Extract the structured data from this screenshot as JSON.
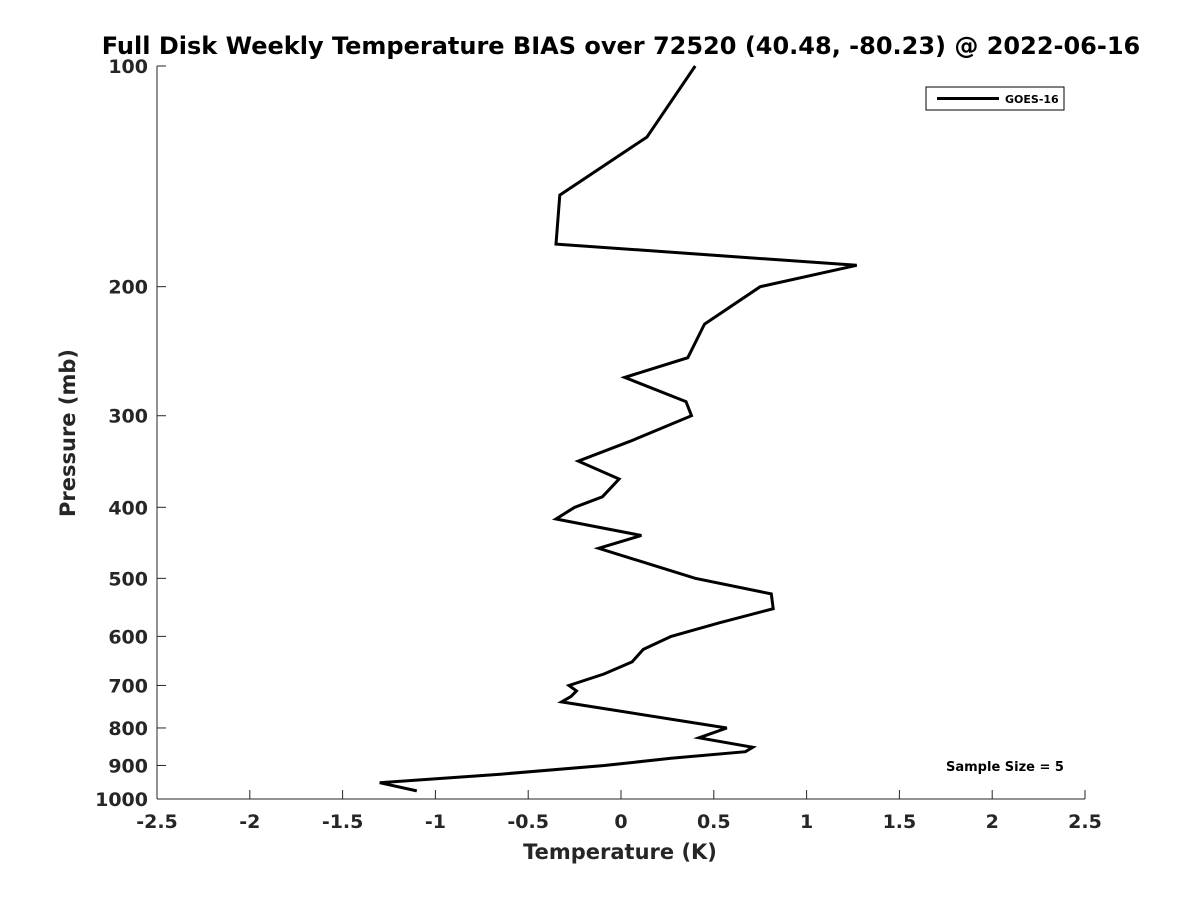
{
  "chart_data": {
    "type": "line",
    "title": "Full Disk Weekly Temperature BIAS over 72520 (40.48, -80.23) @ 2022-06-16",
    "xlabel": "Temperature (K)",
    "ylabel": "Pressure (mb)",
    "xlim": [
      -2.5,
      2.5
    ],
    "ylim": [
      100,
      1000
    ],
    "y_scale": "log",
    "y_reversed": true,
    "x_ticks": [
      -2.5,
      -2,
      -1.5,
      -1,
      -0.5,
      0,
      0.5,
      1,
      1.5,
      2,
      2.5
    ],
    "x_tick_labels": [
      "-2.5",
      "-2",
      "-1.5",
      "-1",
      "-0.5",
      "0",
      "0.5",
      "1",
      "1.5",
      "2",
      "2.5"
    ],
    "y_ticks": [
      100,
      200,
      300,
      400,
      500,
      600,
      700,
      800,
      900,
      1000
    ],
    "y_tick_labels": [
      "100",
      "200",
      "300",
      "400",
      "500",
      "600",
      "700",
      "800",
      "900",
      "1000"
    ],
    "grid": false,
    "legend_position": "top-right",
    "series": [
      {
        "name": "GOES-16",
        "color": "#000000",
        "points": [
          [
            0.4,
            100
          ],
          [
            0.14,
            125
          ],
          [
            -0.33,
            150
          ],
          [
            -0.35,
            175
          ],
          [
            1.27,
            187
          ],
          [
            0.75,
            200
          ],
          [
            0.45,
            225
          ],
          [
            0.36,
            250
          ],
          [
            0.02,
            266
          ],
          [
            0.35,
            287
          ],
          [
            0.38,
            300
          ],
          [
            0.05,
            325
          ],
          [
            -0.23,
            346
          ],
          [
            -0.01,
            366
          ],
          [
            -0.1,
            387
          ],
          [
            -0.25,
            400
          ],
          [
            -0.35,
            415
          ],
          [
            0.11,
            437
          ],
          [
            -0.12,
            455
          ],
          [
            0.4,
            500
          ],
          [
            0.81,
            525
          ],
          [
            0.82,
            550
          ],
          [
            0.53,
            575
          ],
          [
            0.27,
            600
          ],
          [
            0.12,
            625
          ],
          [
            0.06,
            650
          ],
          [
            -0.09,
            675
          ],
          [
            -0.28,
            700
          ],
          [
            -0.24,
            712
          ],
          [
            -0.27,
            725
          ],
          [
            -0.32,
            737
          ],
          [
            0.57,
            800
          ],
          [
            0.42,
            825
          ],
          [
            0.71,
            850
          ],
          [
            0.67,
            862
          ],
          [
            0.27,
            880
          ],
          [
            -0.09,
            900
          ],
          [
            -0.65,
            925
          ],
          [
            -1.3,
            950
          ],
          [
            -1.1,
            975
          ]
        ]
      }
    ],
    "annotation": "Sample Size = 5"
  }
}
